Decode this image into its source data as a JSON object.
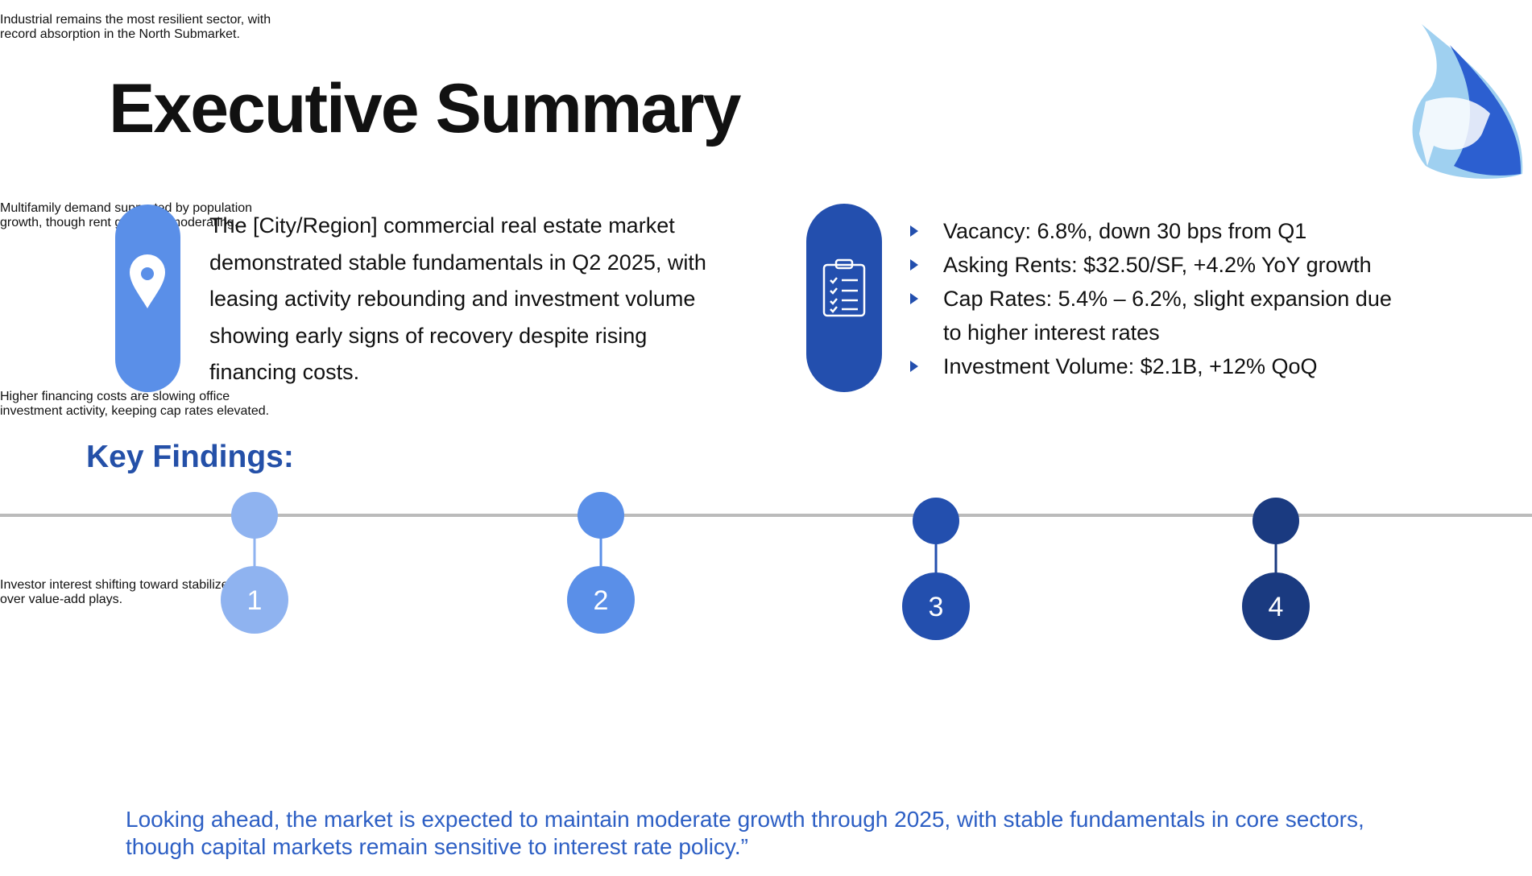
{
  "header": {
    "title": "Executive Summary"
  },
  "summary": {
    "text": "The [City/Region] commercial real estate market demonstrated stable fundamentals in Q2 2025, with leasing activity rebounding and investment volume showing early signs of recovery despite rising financing costs."
  },
  "metrics": {
    "items": [
      "Vacancy: 6.8%, down 30 bps from Q1",
      "Asking Rents: $32.50/SF, +4.2% YoY growth",
      "Cap Rates: 5.4% – 6.2%, slight expansion due to higher interest rates",
      "Investment Volume: $2.1B, +12% QoQ"
    ]
  },
  "key_findings": {
    "heading": "Key Findings:",
    "items": [
      {
        "number": "1",
        "text": "Industrial remains the most resilient sector, with record absorption in the North Submarket.",
        "color": "#8fb3f0"
      },
      {
        "number": "2",
        "text": "Multifamily demand supported by population growth, though rent growth is moderating.",
        "color": "#5a8fe8"
      },
      {
        "number": "3",
        "text": "Higher financing costs are slowing office investment activity, keeping cap rates elevated.",
        "color": "#234fae"
      },
      {
        "number": "4",
        "text": "Investor interest shifting toward stabilized assets over value-add plays.",
        "color": "#1a3a80"
      }
    ]
  },
  "footer": {
    "text": "Looking ahead, the market is expected to maintain moderate growth through 2025, with stable fundamentals in core sectors, though capital markets remain sensitive to interest rate policy.”"
  }
}
